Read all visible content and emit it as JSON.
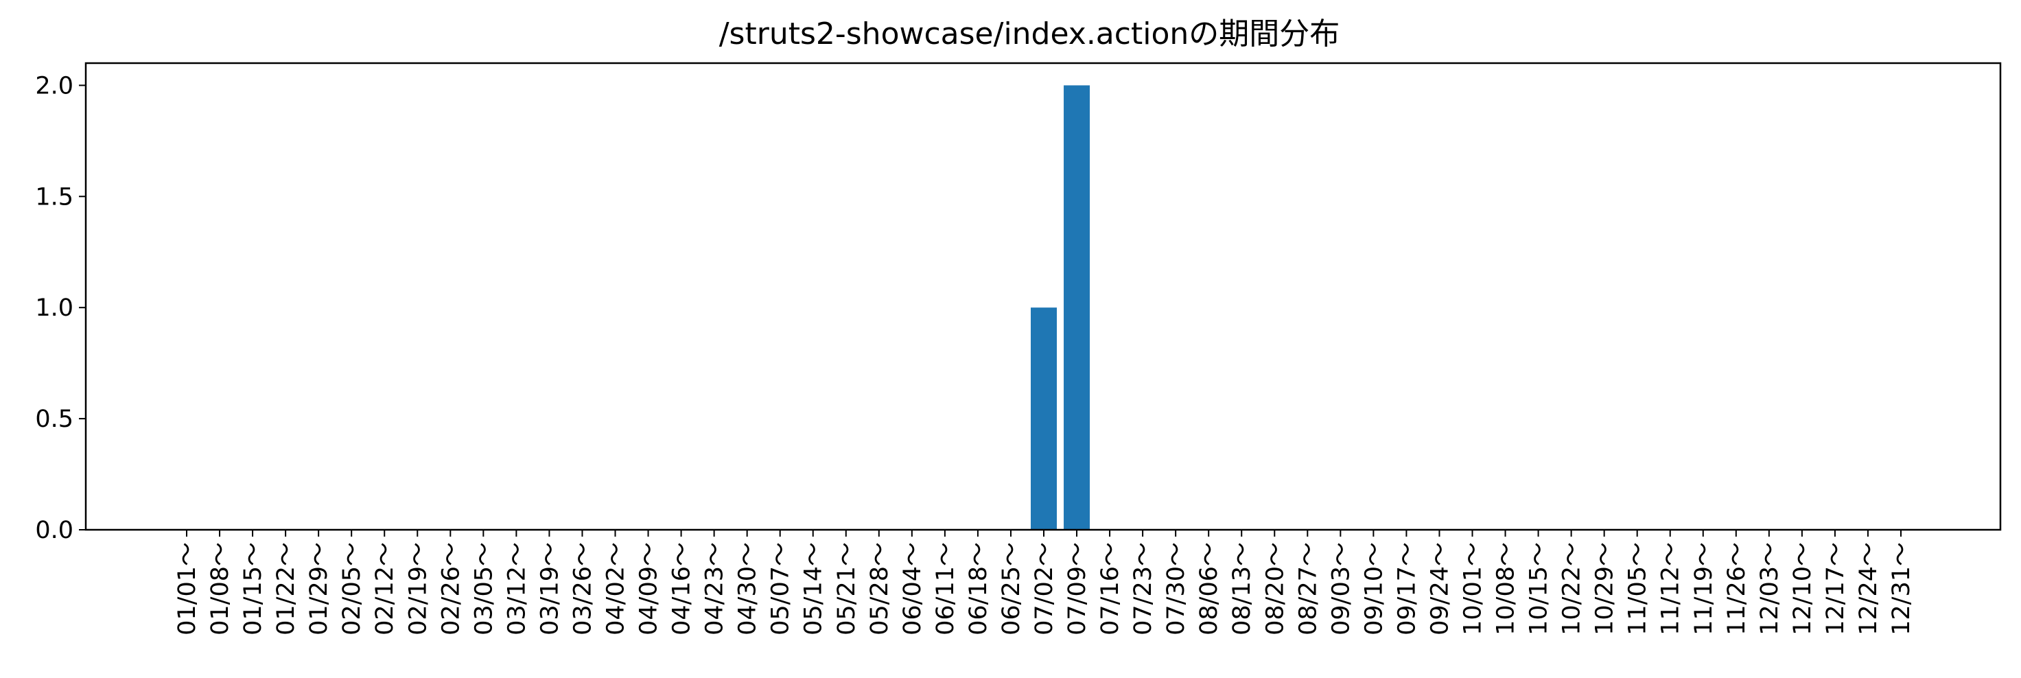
{
  "chart_data": {
    "type": "bar",
    "title": "/struts2-showcase/index.actionの期間分布",
    "xlabel": "",
    "ylabel": "",
    "ylim": [
      0,
      2.1
    ],
    "yticks": [
      "0.0",
      "0.5",
      "1.0",
      "1.5",
      "2.0"
    ],
    "ytick_values": [
      0,
      0.5,
      1.0,
      1.5,
      2.0
    ],
    "grid": false,
    "bar_color": "#1f77b4",
    "categories": [
      "01/01～",
      "01/08～",
      "01/15～",
      "01/22～",
      "01/29～",
      "02/05～",
      "02/12～",
      "02/19～",
      "02/26～",
      "03/05～",
      "03/12～",
      "03/19～",
      "03/26～",
      "04/02～",
      "04/09～",
      "04/16～",
      "04/23～",
      "04/30～",
      "05/07～",
      "05/14～",
      "05/21～",
      "05/28～",
      "06/04～",
      "06/11～",
      "06/18～",
      "06/25～",
      "07/02～",
      "07/09～",
      "07/16～",
      "07/23～",
      "07/30～",
      "08/06～",
      "08/13～",
      "08/20～",
      "08/27～",
      "09/03～",
      "09/10～",
      "09/17～",
      "09/24～",
      "10/01～",
      "10/08～",
      "10/15～",
      "10/22～",
      "10/29～",
      "11/05～",
      "11/12～",
      "11/19～",
      "11/26～",
      "12/03～",
      "12/10～",
      "12/17～",
      "12/24～",
      "12/31～"
    ],
    "values": [
      0,
      0,
      0,
      0,
      0,
      0,
      0,
      0,
      0,
      0,
      0,
      0,
      0,
      0,
      0,
      0,
      0,
      0,
      0,
      0,
      0,
      0,
      0,
      0,
      0,
      0,
      1,
      2,
      0,
      0,
      0,
      0,
      0,
      0,
      0,
      0,
      0,
      0,
      0,
      0,
      0,
      0,
      0,
      0,
      0,
      0,
      0,
      0,
      0,
      0,
      0,
      0,
      0
    ]
  }
}
